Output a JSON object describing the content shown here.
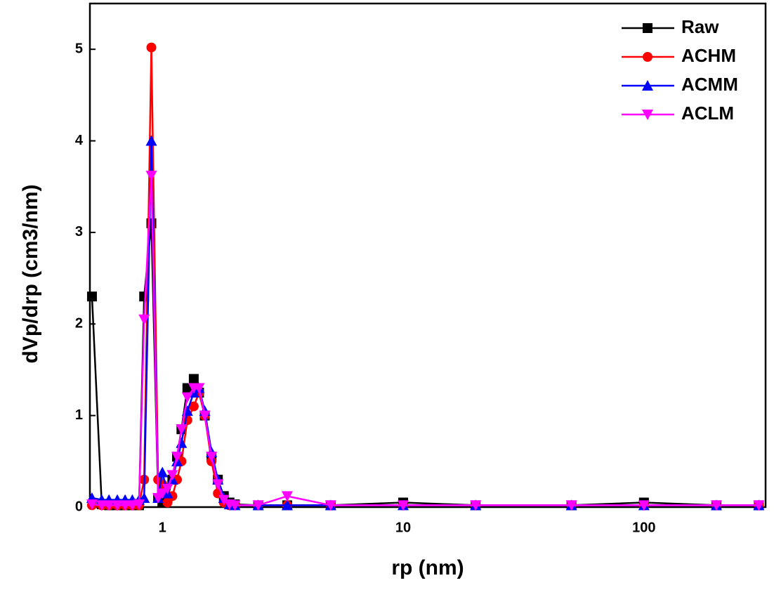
{
  "chart_data": {
    "type": "line",
    "xlabel": "rp (nm)",
    "ylabel": "dVp/drp (cm3/nm)",
    "xscale": "log",
    "x": [
      0.51,
      0.56,
      0.6,
      0.65,
      0.7,
      0.75,
      0.8,
      0.84,
      0.9,
      0.96,
      1.0,
      1.05,
      1.1,
      1.15,
      1.2,
      1.27,
      1.35,
      1.42,
      1.5,
      1.6,
      1.7,
      1.8,
      1.9,
      2.0,
      2.5,
      3.3,
      5,
      10,
      20,
      50,
      100,
      200,
      300
    ],
    "series": [
      {
        "name": "Raw",
        "color": "#000000",
        "marker": "square",
        "values": [
          2.3,
          0.03,
          0.02,
          0.02,
          0.02,
          0.02,
          0.02,
          2.3,
          3.1,
          0.1,
          0.05,
          0.1,
          0.3,
          0.55,
          0.85,
          1.3,
          1.4,
          1.25,
          1.0,
          0.55,
          0.3,
          0.12,
          0.05,
          0.03,
          0.02,
          0.02,
          0.02,
          0.05,
          0.02,
          0.02,
          0.05,
          0.02,
          0.02
        ]
      },
      {
        "name": "ACHM",
        "color": "#ff0000",
        "marker": "circle",
        "values": [
          0.02,
          0.02,
          0.02,
          0.02,
          0.02,
          0.02,
          0.02,
          0.3,
          5.02,
          0.3,
          0.25,
          0.05,
          0.12,
          0.3,
          0.5,
          0.95,
          1.1,
          1.25,
          1.0,
          0.5,
          0.15,
          0.05,
          0.02,
          0.02,
          0.02,
          0.02,
          0.02,
          0.02,
          0.02,
          0.02,
          0.02,
          0.02,
          0.02
        ]
      },
      {
        "name": "ACMM",
        "color": "#0000ff",
        "marker": "triangle-up",
        "values": [
          0.1,
          0.08,
          0.08,
          0.08,
          0.08,
          0.08,
          0.08,
          0.1,
          4.0,
          0.1,
          0.38,
          0.15,
          0.3,
          0.5,
          0.7,
          1.05,
          1.25,
          1.3,
          1.05,
          0.6,
          0.3,
          0.1,
          0.03,
          0.02,
          0.02,
          0.02,
          0.02,
          0.02,
          0.02,
          0.02,
          0.02,
          0.02,
          0.02
        ]
      },
      {
        "name": "ACLM",
        "color": "#ff00ff",
        "marker": "triangle-down",
        "values": [
          0.03,
          0.02,
          0.02,
          0.02,
          0.02,
          0.02,
          0.03,
          2.05,
          3.62,
          0.1,
          0.15,
          0.2,
          0.35,
          0.55,
          0.85,
          1.2,
          1.3,
          1.3,
          1.0,
          0.55,
          0.25,
          0.08,
          0.03,
          0.02,
          0.02,
          0.12,
          0.02,
          0.02,
          0.02,
          0.02,
          0.02,
          0.02,
          0.02
        ]
      }
    ],
    "xlim": [
      0.5,
      320
    ],
    "xticks": [
      1,
      10,
      100
    ],
    "ylim": [
      0,
      5.5
    ],
    "yticks": [
      0,
      1,
      2,
      3,
      4,
      5
    ],
    "legend": "upper right"
  }
}
